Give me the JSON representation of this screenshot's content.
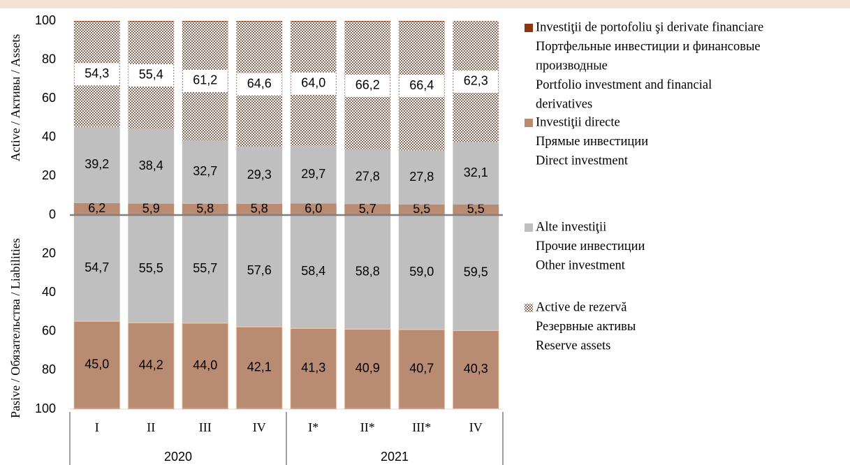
{
  "chart_data": {
    "type": "stacked-bar",
    "categories": [
      "I",
      "II",
      "III",
      "IV",
      "I*",
      "II*",
      "III*",
      "IV"
    ],
    "x_groups": [
      "2020",
      "2020",
      "2020",
      "2020",
      "2021",
      "2021",
      "2021",
      "2021"
    ],
    "ylabel_top": "Active / Активы / Assets",
    "ylabel_bottom": "Pasive / Обязательства / Liabilities",
    "ylim": [
      -100,
      100
    ],
    "yticks": [
      {
        "value": -100,
        "label": "100"
      },
      {
        "value": -80,
        "label": "80"
      },
      {
        "value": -60,
        "label": "60"
      },
      {
        "value": -40,
        "label": "40"
      },
      {
        "value": -20,
        "label": "20"
      },
      0,
      20,
      40,
      60,
      80,
      100
    ],
    "series": [
      {
        "name": [
          "Investiţii de portofoliu şi derivate financiare",
          "Портфельные инвестиции и финансовые",
          "производные",
          "Portfolio investment and financial",
          "derivatives"
        ],
        "color": "#8b3a0f",
        "values": [
          0.3,
          0.3,
          0.3,
          0.3,
          0.3,
          0.3,
          0.3,
          0.1
        ],
        "liabilities": [
          -0.3,
          -0.3,
          -0.3,
          -0.3,
          -0.3,
          -0.3,
          -0.3,
          -0.2
        ]
      },
      {
        "name": [
          "Investiţii directe",
          "Прямые инвестиции",
          "Direct investment"
        ],
        "color": "#b98b73",
        "values": [
          6.2,
          5.9,
          5.8,
          5.8,
          6.0,
          5.7,
          5.5,
          5.5
        ],
        "value_labels": [
          "6,2",
          "5,9",
          "5,8",
          "5,8",
          "6,0",
          "5,7",
          "5,5",
          "5,5"
        ],
        "liabilities": [
          -45.0,
          -44.2,
          -44.0,
          -42.1,
          -41.3,
          -40.9,
          -40.7,
          -40.3
        ],
        "liability_labels": [
          "45,0",
          "44,2",
          "44,0",
          "42,1",
          "41,3",
          "40,9",
          "40,7",
          "40,3"
        ]
      },
      {
        "name": [
          "Alte investiţii",
          "Прочие инвестиции",
          "Other investment"
        ],
        "color": "#bfbfbf",
        "values": [
          39.2,
          38.4,
          32.7,
          29.3,
          29.7,
          27.8,
          27.8,
          32.1
        ],
        "value_labels": [
          "39,2",
          "38,4",
          "32,7",
          "29,3",
          "29,7",
          "27,8",
          "27,8",
          "32,1"
        ],
        "liabilities": [
          -54.7,
          -55.5,
          -55.7,
          -57.6,
          -58.4,
          -58.8,
          -59.0,
          -59.5
        ],
        "liability_labels": [
          "54,7",
          "55,5",
          "55,7",
          "57,6",
          "58,4",
          "58,8",
          "59,0",
          "59,5"
        ]
      },
      {
        "name": [
          "Active de rezervă",
          "Резервные активы",
          "Reserve assets"
        ],
        "color": "#8b6a5a",
        "pattern": "checker",
        "values": [
          54.3,
          55.4,
          61.2,
          64.6,
          64.0,
          66.2,
          66.4,
          62.3
        ],
        "value_labels": [
          "54,3",
          "55,4",
          "61,2",
          "64,6",
          "64,0",
          "66,2",
          "66,4",
          "62,3"
        ]
      }
    ]
  }
}
